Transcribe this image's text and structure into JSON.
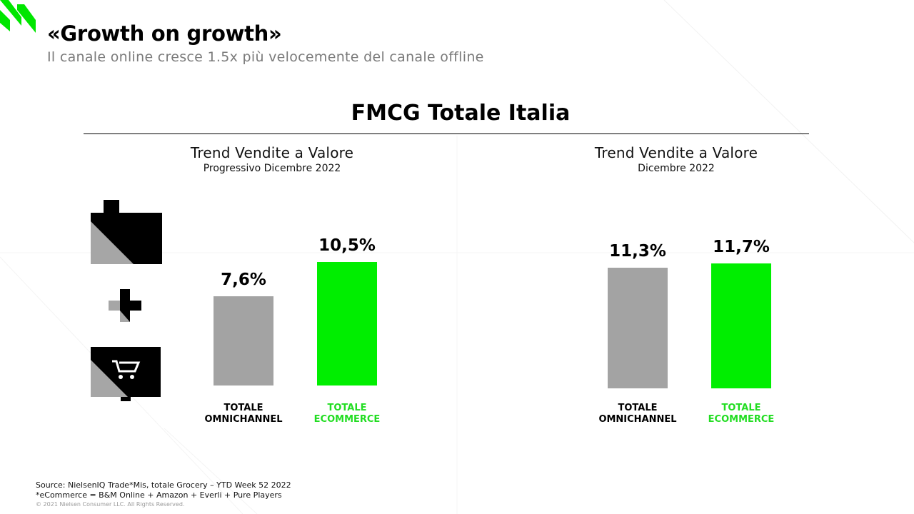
{
  "header": {
    "title": "«Growth on growth»",
    "subtitle": "Il canale online cresce 1.5x più velocemente del canale offline"
  },
  "section_title": "FMCG Totale Italia",
  "colors": {
    "omnichannel": "#a3a3a3",
    "ecommerce": "#00ee00",
    "ecommerce_text": "#22dd22",
    "accent": "#00e600"
  },
  "icons": [
    "store-icon",
    "plus-icon",
    "cart-icon"
  ],
  "chart_data": [
    {
      "type": "bar",
      "title": "Trend Vendite a Valore",
      "subtitle": "Progressivo Dicembre 2022",
      "categories": [
        "TOTALE OMNICHANNEL",
        "TOTALE ECOMMERCE"
      ],
      "category_lines": [
        [
          "TOTALE",
          "OMNICHANNEL"
        ],
        [
          "TOTALE",
          "ECOMMERCE"
        ]
      ],
      "values": [
        7.6,
        10.5
      ],
      "value_labels": [
        "7,6%",
        "10,5%"
      ],
      "ylim": [
        0,
        13
      ]
    },
    {
      "type": "bar",
      "title": "Trend Vendite a Valore",
      "subtitle": "Dicembre 2022",
      "categories": [
        "TOTALE OMNICHANNEL",
        "TOTALE ECOMMERCE"
      ],
      "category_lines": [
        [
          "TOTALE",
          "OMNICHANNEL"
        ],
        [
          "TOTALE",
          "ECOMMERCE"
        ]
      ],
      "values": [
        11.3,
        11.7
      ],
      "value_labels": [
        "11,3%",
        "11,7%"
      ],
      "ylim": [
        0,
        13
      ]
    }
  ],
  "footer": {
    "source": "Source: NielsenIQ Trade*Mis, totale Grocery – YTD Week 52 2022",
    "note": "*eCommerce = B&M Online + Amazon + Everli + Pure Players",
    "copyright": "© 2021 Nielsen Consumer LLC. All Rights Reserved."
  }
}
